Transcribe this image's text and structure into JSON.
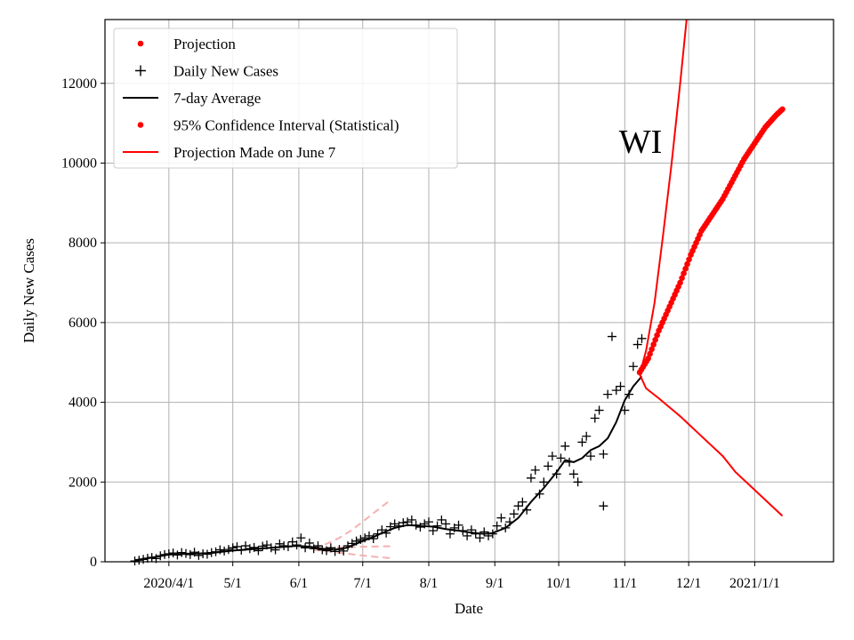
{
  "chart_data": {
    "type": "line",
    "title": "",
    "xlabel": "Date",
    "ylabel": "Daily New Cases",
    "annotation": "WI",
    "xlim_days": [
      -30,
      312
    ],
    "ylim": [
      0,
      13600
    ],
    "x_ticks": [
      {
        "day": 0,
        "label": "2020/4/1"
      },
      {
        "day": 30,
        "label": "5/1"
      },
      {
        "day": 61,
        "label": "6/1"
      },
      {
        "day": 91,
        "label": "7/1"
      },
      {
        "day": 122,
        "label": "8/1"
      },
      {
        "day": 153,
        "label": "9/1"
      },
      {
        "day": 183,
        "label": "10/1"
      },
      {
        "day": 214,
        "label": "11/1"
      },
      {
        "day": 244,
        "label": "12/1"
      },
      {
        "day": 275,
        "label": "2021/1/1"
      }
    ],
    "y_ticks": [
      0,
      2000,
      4000,
      6000,
      8000,
      10000,
      12000
    ],
    "legend": [
      {
        "label": "Projection",
        "marker": "dot",
        "color": "#ff0000"
      },
      {
        "label": "Daily New Cases",
        "marker": "plus",
        "color": "#000000"
      },
      {
        "label": "7-day Average",
        "marker": "line",
        "color": "#000000"
      },
      {
        "label": "95% Confidence Interval (Statistical)",
        "marker": "dot",
        "color": "#ff0000"
      },
      {
        "label": "Projection Made on June 7",
        "marker": "line",
        "color": "#ff0000"
      }
    ],
    "series": [
      {
        "name": "Daily New Cases",
        "style": "plus",
        "color": "#000000",
        "points": [
          [
            -16,
            20
          ],
          [
            -14,
            40
          ],
          [
            -12,
            60
          ],
          [
            -10,
            90
          ],
          [
            -8,
            110
          ],
          [
            -6,
            80
          ],
          [
            -4,
            150
          ],
          [
            -2,
            180
          ],
          [
            0,
            200
          ],
          [
            2,
            220
          ],
          [
            4,
            170
          ],
          [
            6,
            230
          ],
          [
            8,
            210
          ],
          [
            10,
            180
          ],
          [
            12,
            240
          ],
          [
            14,
            160
          ],
          [
            16,
            200
          ],
          [
            18,
            190
          ],
          [
            20,
            230
          ],
          [
            22,
            250
          ],
          [
            24,
            300
          ],
          [
            26,
            270
          ],
          [
            28,
            310
          ],
          [
            30,
            350
          ],
          [
            32,
            380
          ],
          [
            34,
            290
          ],
          [
            36,
            400
          ],
          [
            38,
            330
          ],
          [
            40,
            360
          ],
          [
            42,
            280
          ],
          [
            44,
            390
          ],
          [
            46,
            420
          ],
          [
            48,
            350
          ],
          [
            50,
            300
          ],
          [
            52,
            450
          ],
          [
            54,
            400
          ],
          [
            56,
            380
          ],
          [
            58,
            500
          ],
          [
            60,
            420
          ],
          [
            62,
            600
          ],
          [
            64,
            350
          ],
          [
            66,
            470
          ],
          [
            68,
            330
          ],
          [
            70,
            400
          ],
          [
            72,
            300
          ],
          [
            74,
            280
          ],
          [
            76,
            350
          ],
          [
            78,
            260
          ],
          [
            80,
            310
          ],
          [
            82,
            270
          ],
          [
            84,
            400
          ],
          [
            86,
            460
          ],
          [
            88,
            520
          ],
          [
            90,
            560
          ],
          [
            92,
            600
          ],
          [
            94,
            650
          ],
          [
            96,
            580
          ],
          [
            98,
            700
          ],
          [
            100,
            800
          ],
          [
            102,
            720
          ],
          [
            104,
            880
          ],
          [
            106,
            950
          ],
          [
            108,
            900
          ],
          [
            110,
            980
          ],
          [
            112,
            1000
          ],
          [
            114,
            1050
          ],
          [
            116,
            920
          ],
          [
            118,
            870
          ],
          [
            120,
            950
          ],
          [
            122,
            1000
          ],
          [
            124,
            780
          ],
          [
            126,
            900
          ],
          [
            128,
            1050
          ],
          [
            130,
            950
          ],
          [
            132,
            700
          ],
          [
            134,
            850
          ],
          [
            136,
            920
          ],
          [
            138,
            780
          ],
          [
            140,
            650
          ],
          [
            142,
            800
          ],
          [
            144,
            700
          ],
          [
            146,
            600
          ],
          [
            148,
            750
          ],
          [
            150,
            650
          ],
          [
            152,
            700
          ],
          [
            154,
            900
          ],
          [
            156,
            1100
          ],
          [
            158,
            850
          ],
          [
            160,
            1000
          ],
          [
            162,
            1200
          ],
          [
            164,
            1400
          ],
          [
            166,
            1500
          ],
          [
            168,
            1300
          ],
          [
            170,
            2100
          ],
          [
            172,
            2300
          ],
          [
            174,
            1700
          ],
          [
            176,
            2000
          ],
          [
            178,
            2400
          ],
          [
            180,
            2650
          ],
          [
            182,
            2200
          ],
          [
            184,
            2600
          ],
          [
            186,
            2900
          ],
          [
            188,
            2500
          ],
          [
            190,
            2200
          ],
          [
            192,
            2000
          ],
          [
            194,
            3000
          ],
          [
            196,
            3150
          ],
          [
            198,
            2650
          ],
          [
            200,
            3600
          ],
          [
            202,
            3800
          ],
          [
            204,
            2700
          ],
          [
            206,
            4200
          ],
          [
            208,
            5650
          ],
          [
            210,
            4300
          ],
          [
            212,
            4400
          ],
          [
            214,
            3800
          ],
          [
            216,
            4200
          ],
          [
            218,
            4900
          ],
          [
            220,
            5450
          ],
          [
            222,
            5600
          ],
          [
            204,
            1400
          ]
        ]
      },
      {
        "name": "7-day Average",
        "style": "line",
        "color": "#000000",
        "points": [
          [
            -16,
            40
          ],
          [
            -10,
            90
          ],
          [
            -4,
            140
          ],
          [
            0,
            180
          ],
          [
            10,
            200
          ],
          [
            20,
            220
          ],
          [
            30,
            280
          ],
          [
            40,
            320
          ],
          [
            50,
            360
          ],
          [
            60,
            400
          ],
          [
            66,
            380
          ],
          [
            72,
            330
          ],
          [
            78,
            300
          ],
          [
            84,
            360
          ],
          [
            90,
            500
          ],
          [
            96,
            620
          ],
          [
            100,
            720
          ],
          [
            106,
            850
          ],
          [
            112,
            920
          ],
          [
            118,
            900
          ],
          [
            124,
            880
          ],
          [
            130,
            820
          ],
          [
            136,
            780
          ],
          [
            142,
            730
          ],
          [
            148,
            700
          ],
          [
            152,
            720
          ],
          [
            158,
            850
          ],
          [
            164,
            1100
          ],
          [
            170,
            1500
          ],
          [
            176,
            1850
          ],
          [
            182,
            2250
          ],
          [
            186,
            2550
          ],
          [
            190,
            2500
          ],
          [
            194,
            2600
          ],
          [
            198,
            2800
          ],
          [
            202,
            2900
          ],
          [
            206,
            3100
          ],
          [
            210,
            3500
          ],
          [
            214,
            4050
          ],
          [
            218,
            4400
          ],
          [
            222,
            4650
          ]
        ]
      },
      {
        "name": "Projection",
        "style": "dot",
        "color": "#ff0000",
        "points": [
          [
            221,
            4750
          ],
          [
            225,
            5100
          ],
          [
            230,
            5800
          ],
          [
            235,
            6400
          ],
          [
            240,
            7000
          ],
          [
            245,
            7700
          ],
          [
            250,
            8300
          ],
          [
            255,
            8700
          ],
          [
            260,
            9100
          ],
          [
            265,
            9600
          ],
          [
            270,
            10100
          ],
          [
            275,
            10500
          ],
          [
            280,
            10900
          ],
          [
            285,
            11200
          ],
          [
            288,
            11350
          ]
        ]
      },
      {
        "name": "95% Confidence Interval (Statistical)",
        "style": "line",
        "color": "#ff0000",
        "upper": [
          [
            221,
            4700
          ],
          [
            224,
            5300
          ],
          [
            228,
            6500
          ],
          [
            232,
            8200
          ],
          [
            236,
            10000
          ],
          [
            240,
            12000
          ],
          [
            243,
            13600
          ]
        ],
        "lower": [
          [
            221,
            4700
          ],
          [
            224,
            4350
          ],
          [
            230,
            4100
          ],
          [
            240,
            3650
          ],
          [
            250,
            3150
          ],
          [
            260,
            2650
          ],
          [
            266,
            2250
          ],
          [
            274,
            1850
          ],
          [
            280,
            1550
          ],
          [
            288,
            1150
          ]
        ]
      },
      {
        "name": "Projection Made on June 7",
        "style": "dashed",
        "color": "#f5b0b0",
        "upper": [
          [
            68,
            350
          ],
          [
            74,
            450
          ],
          [
            80,
            600
          ],
          [
            86,
            800
          ],
          [
            92,
            1050
          ],
          [
            98,
            1300
          ],
          [
            104,
            1550
          ]
        ],
        "middle": [
          [
            68,
            330
          ],
          [
            80,
            360
          ],
          [
            92,
            380
          ],
          [
            104,
            390
          ]
        ],
        "lower": [
          [
            68,
            300
          ],
          [
            80,
            230
          ],
          [
            92,
            150
          ],
          [
            104,
            90
          ]
        ]
      }
    ]
  }
}
